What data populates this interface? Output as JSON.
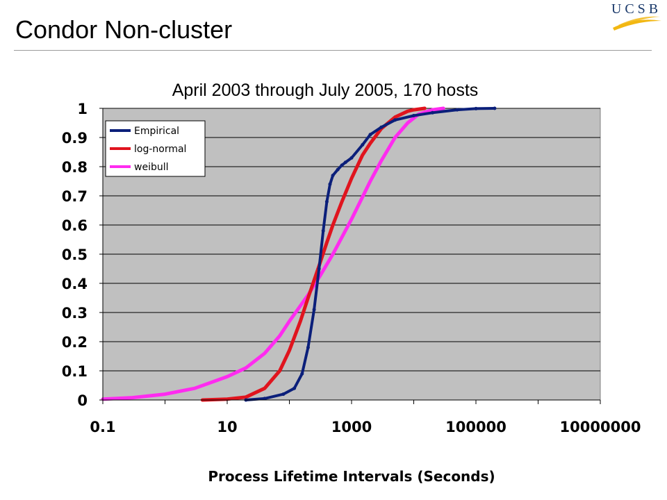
{
  "slide": {
    "title": "Condor Non-cluster",
    "logo_text": "UCSB"
  },
  "colors": {
    "plot_background": "#c0c0c0",
    "gridline": "#000000",
    "empirical": "#0b1f7a",
    "lognormal": "#e0141e",
    "weibull": "#ff2bf0",
    "logo_blue": "#1b3a6b",
    "logo_gold": "#f2b712"
  },
  "chart_data": {
    "type": "line",
    "title": "April 2003 through July 2005, 170 hosts",
    "xlabel": "Process Lifetime Intervals (Seconds)",
    "ylabel": "",
    "x_scale": "log",
    "xlim": [
      0.1,
      10000000
    ],
    "ylim": [
      0,
      1
    ],
    "x_ticks": [
      "0.1",
      "10",
      "1000",
      "100000",
      "10000000"
    ],
    "x_tick_values": [
      0.1,
      10,
      1000,
      100000,
      10000000
    ],
    "y_ticks": [
      "0",
      "0.1",
      "0.2",
      "0.3",
      "0.4",
      "0.5",
      "0.6",
      "0.7",
      "0.8",
      "0.9",
      "1"
    ],
    "y_tick_values": [
      0,
      0.1,
      0.2,
      0.3,
      0.4,
      0.5,
      0.6,
      0.7,
      0.8,
      0.9,
      1
    ],
    "grid": "horizontal",
    "legend_position": "top-left",
    "series": [
      {
        "name": "Empirical",
        "color": "#0b1f7a",
        "x": [
          20,
          40,
          80,
          120,
          160,
          200,
          250,
          300,
          350,
          400,
          450,
          500,
          600,
          700,
          800,
          1000,
          1500,
          2000,
          3000,
          5000,
          10000,
          20000,
          50000,
          100000,
          200000
        ],
        "y": [
          0.0,
          0.005,
          0.02,
          0.04,
          0.09,
          0.18,
          0.31,
          0.45,
          0.58,
          0.68,
          0.74,
          0.77,
          0.79,
          0.805,
          0.815,
          0.83,
          0.875,
          0.91,
          0.935,
          0.96,
          0.975,
          0.985,
          0.995,
          0.999,
          1.0
        ]
      },
      {
        "name": "log-normal",
        "color": "#e0141e",
        "x": [
          4,
          10,
          20,
          40,
          70,
          100,
          150,
          200,
          300,
          400,
          500,
          700,
          1000,
          1500,
          2000,
          3000,
          5000,
          8000,
          10000,
          15000
        ],
        "y": [
          0.0,
          0.003,
          0.01,
          0.04,
          0.1,
          0.17,
          0.27,
          0.35,
          0.46,
          0.54,
          0.6,
          0.68,
          0.76,
          0.84,
          0.88,
          0.93,
          0.97,
          0.99,
          0.995,
          1.0
        ]
      },
      {
        "name": "weibull",
        "color": "#ff2bf0",
        "x": [
          0.1,
          0.3,
          1,
          3,
          10,
          20,
          40,
          70,
          100,
          200,
          300,
          500,
          1000,
          2000,
          3000,
          5000,
          8000,
          12000,
          20000,
          30000
        ],
        "y": [
          0.003,
          0.008,
          0.02,
          0.04,
          0.08,
          0.11,
          0.16,
          0.22,
          0.27,
          0.36,
          0.42,
          0.5,
          0.62,
          0.75,
          0.82,
          0.9,
          0.95,
          0.98,
          0.995,
          1.0
        ]
      }
    ]
  }
}
